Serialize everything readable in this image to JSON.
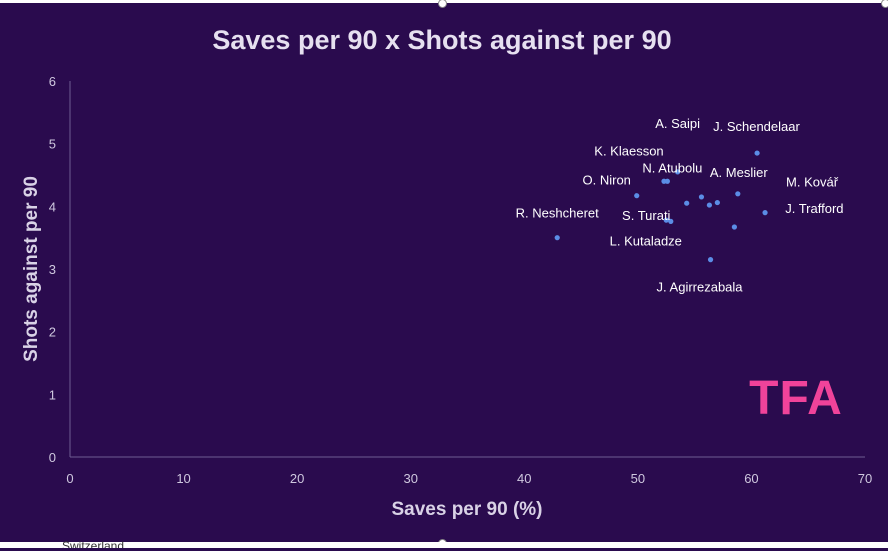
{
  "chart_data": {
    "type": "scatter",
    "title": "Saves per 90 x Shots against per 90",
    "xlabel": "Saves per 90 (%)",
    "ylabel": "Shots against per 90",
    "xlim": [
      0,
      70
    ],
    "ylim": [
      0,
      6
    ],
    "x_ticks": [
      "0",
      "10",
      "20",
      "30",
      "40",
      "50",
      "60",
      "70"
    ],
    "y_ticks": [
      "0",
      "1",
      "2",
      "3",
      "4",
      "5",
      "6"
    ],
    "grid": false,
    "points": [
      {
        "label": "A. Saipi",
        "x": 53.5,
        "y": 4.55
      },
      {
        "label": "J. Schendelaar",
        "x": 60.5,
        "y": 4.85
      },
      {
        "label": "K. Klaesson",
        "x": 52.3,
        "y": 4.4
      },
      {
        "label": "N. Atubolu",
        "x": 52.6,
        "y": 4.4
      },
      {
        "label": "O. Niron",
        "x": 49.9,
        "y": 4.17
      },
      {
        "label": "A. Meslier",
        "x": 58.8,
        "y": 4.2
      },
      {
        "label": "M. Kovář",
        "x": 61.2,
        "y": 3.9
      },
      {
        "label": "S. Turati",
        "x": 52.5,
        "y": 3.78
      },
      {
        "label": "R. Neshcheret",
        "x": 42.9,
        "y": 3.5
      },
      {
        "label": "J. Trafford",
        "x": 58.5,
        "y": 3.67
      },
      {
        "label": "L. Kutaladze",
        "x": 52.9,
        "y": 3.76
      },
      {
        "label": "J. Agirrezabala",
        "x": 56.4,
        "y": 3.15
      },
      {
        "label": "",
        "x": 54.3,
        "y": 4.05
      },
      {
        "label": "",
        "x": 55.6,
        "y": 4.15
      },
      {
        "label": "",
        "x": 56.3,
        "y": 4.02
      },
      {
        "label": "",
        "x": 57.0,
        "y": 4.06
      }
    ]
  },
  "logo": {
    "text": "TFA",
    "color": "#f0439a"
  },
  "footer": {
    "partial_text": "Switzerland"
  },
  "colors": {
    "background": "#2a0b4e",
    "point": "#5b8de6",
    "text": "#ffffff"
  }
}
